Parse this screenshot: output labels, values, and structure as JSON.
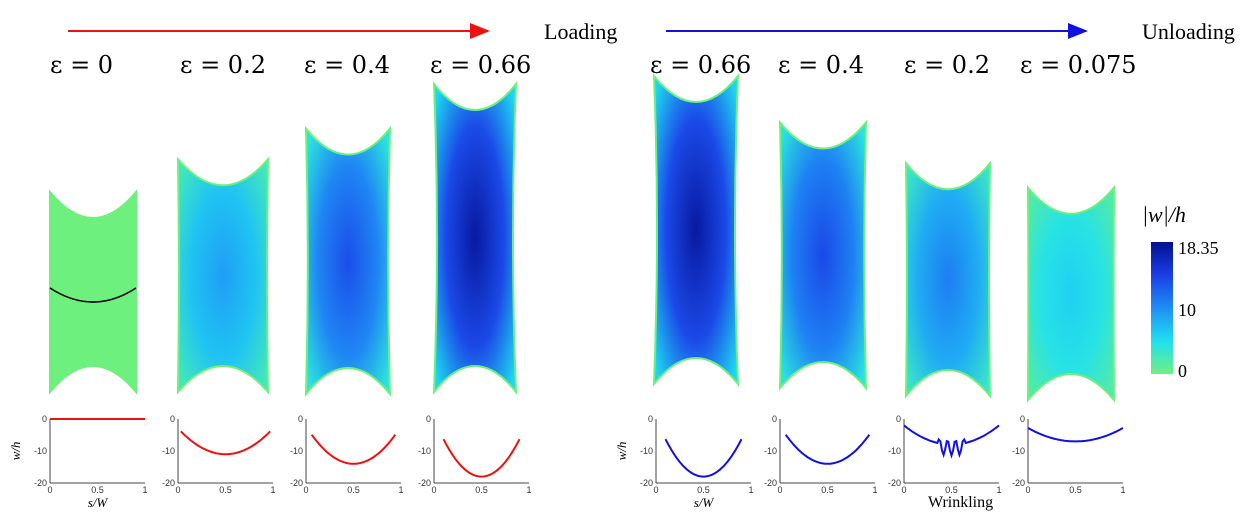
{
  "loading": {
    "label": "Loading",
    "arrow_color": "#ee1111",
    "panels": [
      {
        "strain": "ε = 0",
        "fill": 0.0,
        "eps": 0
      },
      {
        "strain": "ε = 0.2",
        "fill": 0.45,
        "eps": 0.2
      },
      {
        "strain": "ε = 0.4",
        "fill": 0.7,
        "eps": 0.4
      },
      {
        "strain": "ε = 0.66",
        "fill": 0.95,
        "eps": 0.66
      }
    ],
    "plots": [
      {
        "profile": "flat",
        "color": "#ee1111",
        "min": 0,
        "span": [
          0,
          1
        ],
        "show_axes_labels": true
      },
      {
        "profile": "parabola",
        "color": "#ee1111",
        "min": -11,
        "span": [
          0.03,
          0.97
        ],
        "show_axes_labels": false
      },
      {
        "profile": "parabola",
        "color": "#ee1111",
        "min": -14,
        "span": [
          0.06,
          0.94
        ],
        "show_axes_labels": false
      },
      {
        "profile": "parabola",
        "color": "#ee1111",
        "min": -18,
        "span": [
          0.1,
          0.9
        ],
        "show_axes_labels": false
      }
    ]
  },
  "unloading": {
    "label": "Unloading",
    "arrow_color": "#1111dd",
    "panels": [
      {
        "strain": "ε = 0.66",
        "fill": 0.95,
        "eps": 0.66
      },
      {
        "strain": "ε = 0.4",
        "fill": 0.72,
        "eps": 0.4
      },
      {
        "strain": "ε = 0.2",
        "fill": 0.55,
        "eps": 0.2
      },
      {
        "strain": "ε = 0.075",
        "fill": 0.3,
        "eps": 0.075
      }
    ],
    "plots": [
      {
        "profile": "parabola",
        "color": "#1111dd",
        "min": -18,
        "span": [
          0.1,
          0.9
        ],
        "show_axes_labels": true
      },
      {
        "profile": "parabola",
        "color": "#1111dd",
        "min": -14,
        "span": [
          0.06,
          0.94
        ],
        "show_axes_labels": false
      },
      {
        "profile": "wrinkle",
        "color": "#1111dd",
        "min": -11,
        "span": [
          0.0,
          1.0
        ],
        "show_axes_labels": false
      },
      {
        "profile": "parabola",
        "color": "#1111dd",
        "min": -7,
        "span": [
          0.0,
          1.0
        ],
        "show_axes_labels": false
      }
    ],
    "wrinkling_label": "Wrinkling"
  },
  "axes": {
    "ylabel": "w/h",
    "xlabel": "s/W",
    "yticks": [
      "0",
      "-10",
      "-20"
    ],
    "xticks": [
      "0",
      "0.5",
      "1"
    ],
    "ylim": [
      -20,
      0
    ],
    "xlim": [
      0,
      1
    ]
  },
  "colorbar": {
    "title": "|w|/h",
    "max_label": "18.35",
    "mid_label": "10",
    "min_label": "0",
    "colors": [
      "#6ef07e",
      "#1fe0f0",
      "#1f8ef5",
      "#1a3ee6",
      "#04108f"
    ]
  },
  "profile_curve_color": "#000000"
}
